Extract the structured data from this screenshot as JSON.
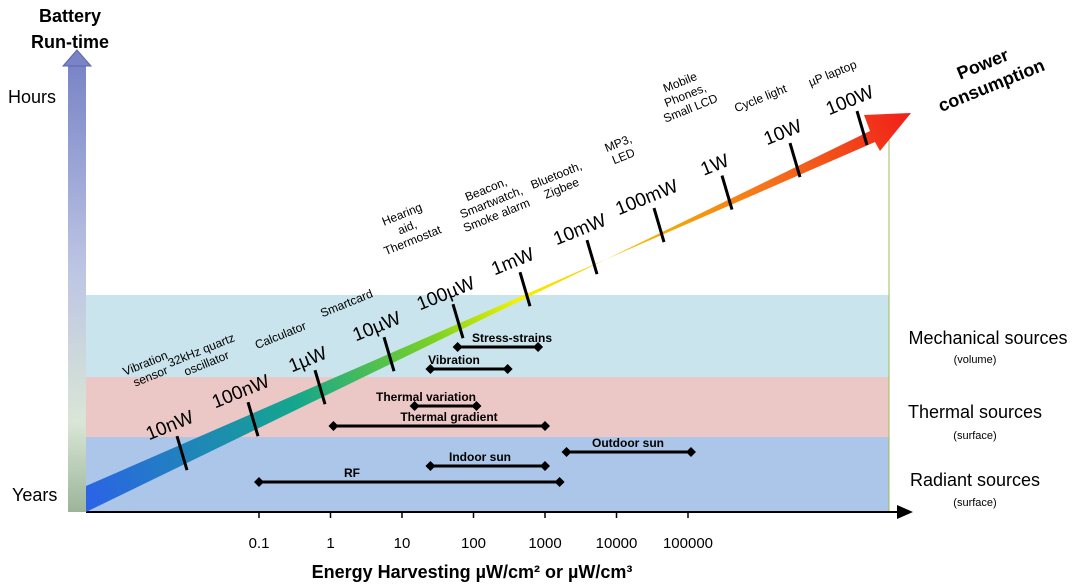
{
  "y_axis": {
    "title_line1": "Battery",
    "title_line2": "Run-time",
    "top_label": "Hours",
    "bottom_label": "Years"
  },
  "power_axis": {
    "title_line1": "Power",
    "title_line2": "consumption",
    "levels": [
      "10nW",
      "100nW",
      "1µW",
      "10µW",
      "100µW",
      "1mW",
      "10mW",
      "100mW",
      "1W",
      "10W",
      "100W"
    ]
  },
  "devices": [
    {
      "lines": [
        "Vibration",
        "sensor"
      ]
    },
    {
      "lines": [
        "32kHz quartz",
        "oscillator"
      ]
    },
    {
      "lines": [
        "Calculator"
      ]
    },
    {
      "lines": [
        "Smartcard"
      ]
    },
    {
      "lines": [
        "Hearing",
        "aid,",
        "Thermostat"
      ]
    },
    {
      "lines": [
        "Beacon,",
        "Smartwatch,",
        "Smoke alarm"
      ]
    },
    {
      "lines": [
        "Bluetooth,",
        "Zigbee"
      ]
    },
    {
      "lines": [
        "MP3,",
        "LED"
      ]
    },
    {
      "lines": [
        "Mobile",
        "Phones,",
        "Small LCD"
      ]
    },
    {
      "lines": [
        "Cycle light"
      ]
    },
    {
      "lines": [
        "µP laptop"
      ]
    }
  ],
  "x_axis": {
    "title": "Energy Harvesting µW/cm² or  µW/cm³",
    "ticks": [
      "0.1",
      "1",
      "10",
      "100",
      "1000",
      "10000",
      "100000"
    ]
  },
  "sources": [
    {
      "id": "mechanical",
      "title": "Mechanical sources",
      "sub": "(volume)",
      "color": "#c9e4ec"
    },
    {
      "id": "thermal",
      "title": "Thermal sources",
      "sub": "(surface)",
      "color": "#ebc8c6"
    },
    {
      "id": "radiant",
      "title": "Radiant sources",
      "sub": "(surface)",
      "color": "#abc6e9"
    }
  ],
  "ranges": [
    {
      "label": "Stress-strains",
      "min": 60,
      "max": 800,
      "source": "mechanical"
    },
    {
      "label": "Vibration",
      "min": 25,
      "max": 300,
      "source": "mechanical"
    },
    {
      "label": "Thermal variation",
      "min": 15,
      "max": 110,
      "source": "thermal"
    },
    {
      "label": "Thermal gradient",
      "min": 1.1,
      "max": 1000,
      "source": "thermal"
    },
    {
      "label": "Outdoor sun",
      "min": 2000,
      "max": 110000,
      "source": "radiant"
    },
    {
      "label": "Indoor sun",
      "min": 25,
      "max": 1000,
      "source": "radiant"
    },
    {
      "label": "RF",
      "min": 0.1,
      "max": 1600,
      "source": "radiant"
    }
  ],
  "colors": {
    "arrow_gradient": [
      "#2b63e6",
      "#14a68e",
      "#7ed321",
      "#f5f200",
      "#f5b800",
      "#f57a1a",
      "#f01a1a"
    ],
    "y_axis_gradient": [
      "#7884c6",
      "#bcc4e4",
      "#d9e6d6",
      "#9bb59a"
    ]
  }
}
